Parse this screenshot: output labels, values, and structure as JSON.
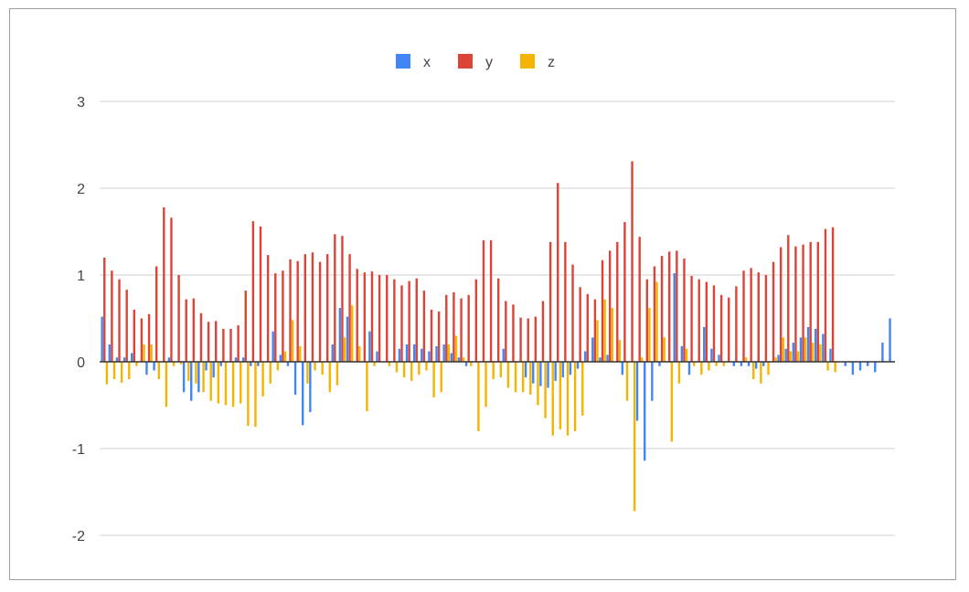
{
  "chart_data": {
    "type": "bar",
    "title": "",
    "xlabel": "",
    "ylabel": "",
    "ylim": [
      -2.3,
      3.2
    ],
    "yticks": [
      3,
      2,
      1,
      0,
      -1,
      -2
    ],
    "ytick_labels": [
      "3",
      "2",
      "1",
      "0",
      "-1",
      "-2"
    ],
    "grid": true,
    "legend_position": "top-center",
    "series": [
      {
        "name": "x",
        "color": "#4285f4",
        "values": [
          0.52,
          0.2,
          0.05,
          0.05,
          0.1,
          0.0,
          -0.15,
          -0.1,
          0.0,
          0.05,
          0.0,
          -0.35,
          -0.45,
          -0.35,
          -0.1,
          -0.18,
          -0.05,
          0.0,
          0.05,
          0.05,
          -0.05,
          -0.05,
          0.0,
          0.35,
          0.08,
          -0.05,
          -0.38,
          -0.73,
          -0.58,
          0.0,
          0.0,
          0.2,
          0.62,
          0.52,
          0.0,
          0.0,
          0.35,
          0.12,
          0.0,
          0.0,
          0.15,
          0.2,
          0.2,
          0.15,
          0.12,
          0.18,
          0.2,
          0.1,
          0.05,
          -0.05,
          0.0,
          0.0,
          0.0,
          0.0,
          0.15,
          0.0,
          0.0,
          -0.18,
          -0.25,
          -0.28,
          -0.3,
          -0.22,
          -0.18,
          -0.15,
          -0.08,
          0.12,
          0.28,
          0.05,
          0.08,
          0.0,
          -0.15,
          0.0,
          -0.68,
          -1.14,
          -0.45,
          -0.05,
          0.0,
          1.02,
          0.18,
          -0.15,
          0.0,
          0.4,
          0.15,
          0.08,
          0.0,
          -0.05,
          -0.05,
          -0.05,
          -0.08,
          -0.05,
          0.0,
          0.08,
          0.15,
          0.22,
          0.28,
          0.4,
          0.38,
          0.32,
          0.15,
          0.0,
          -0.05,
          -0.15,
          -0.1,
          -0.05,
          -0.12,
          0.22,
          0.5
        ],
        "omitted": []
      },
      {
        "name": "y",
        "color": "#db4437",
        "values": [
          1.2,
          1.05,
          0.95,
          0.83,
          0.6,
          0.5,
          0.55,
          1.1,
          1.78,
          1.66,
          1.0,
          0.72,
          0.73,
          0.56,
          0.46,
          0.47,
          0.38,
          0.38,
          0.42,
          0.82,
          1.62,
          1.56,
          1.23,
          1.02,
          1.05,
          1.18,
          1.16,
          1.24,
          1.26,
          1.15,
          1.24,
          1.47,
          1.45,
          1.24,
          1.07,
          1.03,
          1.04,
          1.0,
          1.0,
          0.95,
          0.88,
          0.93,
          0.96,
          0.82,
          0.6,
          0.58,
          0.77,
          0.8,
          0.73,
          0.77,
          0.95,
          1.4,
          1.4,
          0.96,
          0.7,
          0.66,
          0.51,
          0.5,
          0.52,
          0.7,
          1.38,
          2.06,
          1.38,
          1.12,
          0.86,
          0.78,
          0.72,
          1.17,
          1.28,
          1.38,
          1.61,
          2.31,
          1.44,
          0.95,
          1.1,
          1.22,
          1.27,
          1.28,
          1.19,
          0.99,
          0.95,
          0.92,
          0.88,
          0.77,
          0.74,
          0.87,
          1.05,
          1.08,
          1.03,
          1.0,
          1.15,
          1.32,
          1.46,
          1.33,
          1.35,
          1.38,
          1.38,
          1.53,
          1.55
        ],
        "omitted": []
      },
      {
        "name": "z",
        "color": "#f4b400",
        "values": [
          -0.26,
          -0.2,
          -0.24,
          -0.2,
          -0.05,
          0.2,
          0.2,
          -0.2,
          -0.52,
          -0.05,
          -0.03,
          -0.22,
          -0.25,
          -0.35,
          -0.45,
          -0.48,
          -0.5,
          -0.52,
          -0.48,
          -0.74,
          -0.75,
          -0.4,
          -0.25,
          -0.1,
          0.12,
          0.48,
          0.18,
          -0.25,
          -0.1,
          -0.15,
          -0.35,
          -0.27,
          0.28,
          0.65,
          0.18,
          -0.57,
          -0.05,
          0.0,
          -0.05,
          -0.12,
          -0.18,
          -0.22,
          -0.15,
          -0.1,
          -0.41,
          -0.35,
          0.2,
          0.3,
          0.05,
          -0.05,
          -0.8,
          -0.52,
          -0.2,
          -0.18,
          -0.3,
          -0.35,
          -0.35,
          -0.38,
          -0.5,
          -0.65,
          -0.85,
          -0.78,
          -0.85,
          -0.8,
          -0.62,
          0.0,
          0.48,
          0.72,
          0.62,
          0.25,
          -0.45,
          -1.72,
          0.05,
          0.62,
          0.92,
          0.28,
          -0.92,
          -0.25,
          0.15,
          -0.05,
          -0.15,
          -0.1,
          -0.05,
          -0.05,
          0.0,
          0.0,
          0.05,
          -0.2,
          -0.25,
          -0.15,
          0.05,
          0.28,
          0.12,
          0.12,
          0.28,
          0.22,
          0.2,
          -0.1,
          -0.12
        ],
        "omitted": []
      }
    ]
  }
}
